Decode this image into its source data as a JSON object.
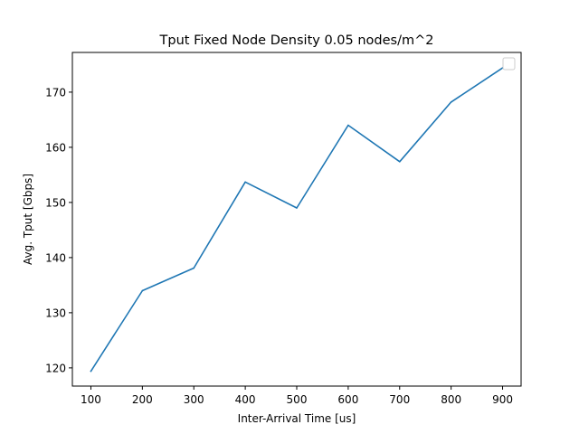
{
  "chart_data": {
    "type": "line",
    "title": "Tput Fixed Node Density 0.05 nodes/m^2",
    "xlabel": "Inter-Arrival Time [us]",
    "ylabel": "Avg. Tput [Gbps]",
    "x": [
      100,
      200,
      300,
      400,
      500,
      600,
      700,
      800,
      900
    ],
    "series": [
      {
        "values": [
          119.4,
          134.0,
          138.1,
          153.7,
          149.0,
          164.0,
          157.4,
          168.2,
          174.4
        ],
        "color": "#1f77b4"
      }
    ],
    "xlim": [
      64,
      936
    ],
    "ylim": [
      116.7,
      177.2
    ],
    "xticks": [
      100,
      200,
      300,
      400,
      500,
      600,
      700,
      800,
      900
    ],
    "yticks": [
      120,
      130,
      140,
      150,
      160,
      170
    ],
    "grid": false,
    "legend": "upper-right (empty)"
  }
}
